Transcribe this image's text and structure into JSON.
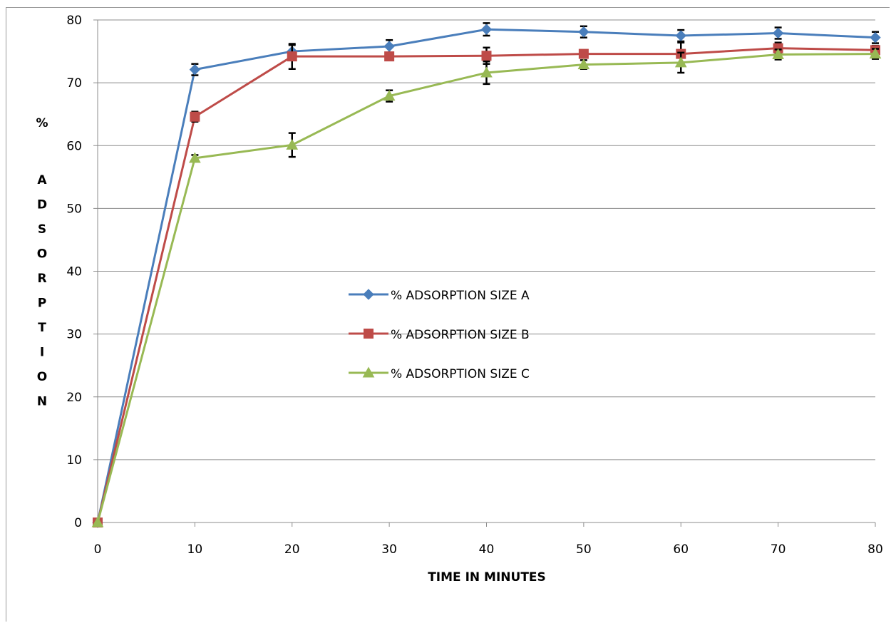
{
  "chart_data": {
    "type": "line",
    "xlabel": "TIME IN MINUTES",
    "ylabel": "% ADSORPTION",
    "xlim": [
      0,
      80
    ],
    "ylim": [
      0,
      80
    ],
    "x_ticks": [
      0,
      10,
      20,
      30,
      40,
      50,
      60,
      70,
      80
    ],
    "y_ticks": [
      0,
      10,
      20,
      30,
      40,
      50,
      60,
      70,
      80
    ],
    "grid": "horizontal",
    "legend_position": "center",
    "x": [
      0,
      10,
      20,
      30,
      40,
      50,
      60,
      70,
      80
    ],
    "series": [
      {
        "name": "% ADSORPTION SIZE A",
        "color": "#4a7ebb",
        "marker": "diamond",
        "values": [
          0,
          72.1,
          75.0,
          75.8,
          78.5,
          78.1,
          77.5,
          77.9,
          77.2
        ],
        "errors": [
          0,
          0.9,
          1.0,
          1.0,
          1.0,
          0.9,
          0.9,
          0.9,
          0.9
        ]
      },
      {
        "name": "% ADSORPTION SIZE B",
        "color": "#be4b48",
        "marker": "square",
        "values": [
          0,
          64.6,
          74.2,
          74.2,
          74.3,
          74.6,
          74.6,
          75.5,
          75.2
        ],
        "errors": [
          0,
          0.8,
          2.0,
          0.6,
          1.3,
          0.6,
          1.8,
          0.9,
          0.7
        ]
      },
      {
        "name": "% ADSORPTION SIZE C",
        "color": "#98b954",
        "marker": "triangle",
        "values": [
          0,
          58.0,
          60.1,
          67.9,
          71.6,
          72.9,
          73.2,
          74.5,
          74.6
        ],
        "errors": [
          0,
          0.5,
          1.9,
          0.9,
          1.8,
          0.7,
          1.6,
          0.8,
          0.8
        ]
      }
    ]
  }
}
